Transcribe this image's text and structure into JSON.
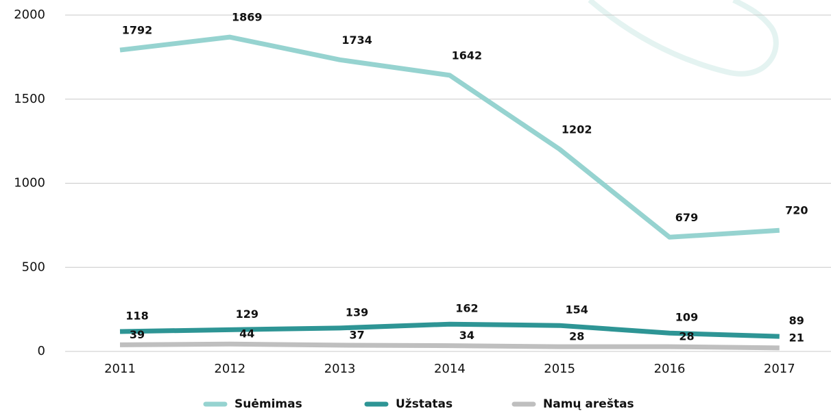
{
  "chart_data": {
    "type": "line",
    "categories": [
      "2011",
      "2012",
      "2013",
      "2014",
      "2015",
      "2016",
      "2017"
    ],
    "series": [
      {
        "name": "Suėmimas",
        "color": "#96d3d0",
        "values": [
          1792,
          1869,
          1734,
          1642,
          1202,
          679,
          720
        ]
      },
      {
        "name": "Užstatas",
        "color": "#2e9595",
        "values": [
          118,
          129,
          139,
          162,
          154,
          109,
          89
        ]
      },
      {
        "name": "Namų areštas",
        "color": "#bfbfbf",
        "values": [
          39,
          44,
          37,
          34,
          28,
          28,
          21
        ]
      }
    ],
    "ylim": [
      0,
      2000
    ],
    "yticks": [
      0,
      500,
      1000,
      1500,
      2000
    ],
    "grid": true
  }
}
